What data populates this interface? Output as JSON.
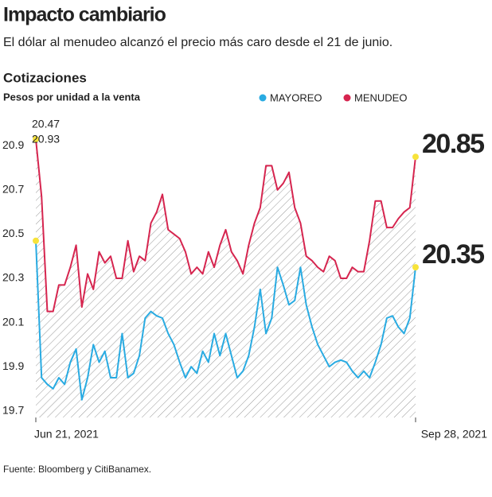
{
  "chart_data": {
    "type": "line",
    "title": "Impacto cambiario",
    "subtitle": "El dólar al menudeo alcanzó el precio más caro desde el 21 de junio.",
    "chart_title": "Cotizaciones",
    "y_label": "Pesos por unidad a la venta",
    "source": "Fuente: Bloomberg y CitiBanamex.",
    "categories": [
      "Jun 21, 2021",
      null,
      null,
      null,
      null,
      null,
      null,
      null,
      null,
      null,
      null,
      null,
      null,
      null,
      null,
      null,
      null,
      null,
      null,
      null,
      null,
      null,
      null,
      null,
      null,
      null,
      null,
      null,
      null,
      null,
      null,
      null,
      null,
      null,
      null,
      null,
      null,
      null,
      null,
      null,
      null,
      null,
      null,
      null,
      null,
      null,
      null,
      null,
      null,
      null,
      null,
      null,
      null,
      null,
      null,
      null,
      null,
      null,
      null,
      null,
      null,
      null,
      null,
      null,
      null,
      null,
      "Sep 28, 2021"
    ],
    "series": [
      {
        "name": "MAYOREO",
        "color": "#29abe2",
        "values": [
          20.47,
          19.85,
          19.82,
          19.8,
          19.85,
          19.82,
          19.92,
          19.98,
          19.75,
          19.85,
          20.0,
          19.92,
          19.97,
          19.85,
          19.85,
          20.05,
          19.85,
          19.87,
          19.95,
          20.12,
          20.15,
          20.13,
          20.12,
          20.05,
          20.0,
          19.92,
          19.85,
          19.9,
          19.87,
          19.97,
          19.92,
          20.05,
          19.95,
          20.05,
          19.95,
          19.85,
          19.88,
          19.95,
          20.08,
          20.25,
          20.05,
          20.12,
          20.35,
          20.27,
          20.18,
          20.2,
          20.35,
          20.18,
          20.08,
          20.0,
          19.95,
          19.9,
          19.92,
          19.93,
          19.92,
          19.88,
          19.85,
          19.88,
          19.85,
          19.92,
          20.0,
          20.12,
          20.13,
          20.08,
          20.05,
          20.12,
          20.35
        ]
      },
      {
        "name": "MENUDEO",
        "color": "#d6254f",
        "values": [
          20.93,
          20.67,
          20.15,
          20.15,
          20.27,
          20.27,
          20.35,
          20.45,
          20.17,
          20.32,
          20.25,
          20.42,
          20.37,
          20.4,
          20.3,
          20.3,
          20.47,
          20.33,
          20.4,
          20.38,
          20.55,
          20.6,
          20.68,
          20.52,
          20.5,
          20.48,
          20.42,
          20.32,
          20.35,
          20.32,
          20.42,
          20.35,
          20.45,
          20.52,
          20.42,
          20.38,
          20.32,
          20.45,
          20.55,
          20.62,
          20.81,
          20.81,
          20.7,
          20.73,
          20.78,
          20.62,
          20.55,
          20.4,
          20.38,
          20.35,
          20.33,
          20.4,
          20.38,
          20.3,
          20.3,
          20.35,
          20.33,
          20.33,
          20.47,
          20.65,
          20.65,
          20.53,
          20.53,
          20.57,
          20.6,
          20.62,
          20.85
        ]
      }
    ],
    "ylim": [
      19.67,
      21.02
    ],
    "yticks": [
      19.7,
      19.9,
      20.1,
      20.3,
      20.5,
      20.7,
      20.9
    ],
    "grid": false
  }
}
